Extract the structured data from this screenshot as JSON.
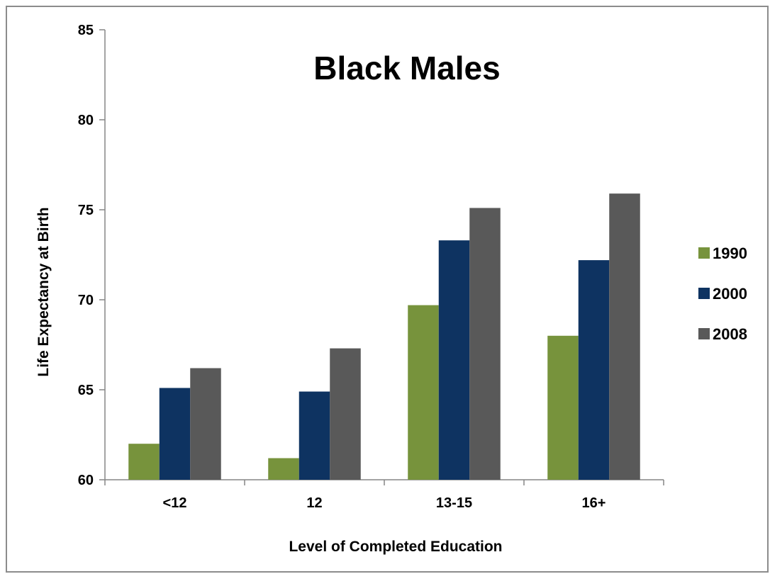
{
  "chart_data": {
    "type": "bar",
    "title": "Black Males",
    "xlabel": "Level of Completed Education",
    "ylabel": "Life Expectancy at Birth",
    "categories": [
      "<12",
      "12",
      "13-15",
      "16+"
    ],
    "series": [
      {
        "name": "1990",
        "color": "#77933c",
        "values": [
          62.0,
          61.2,
          69.7,
          68.0
        ]
      },
      {
        "name": "2000",
        "color": "#0e3361",
        "values": [
          65.1,
          64.9,
          73.3,
          72.2
        ]
      },
      {
        "name": "2008",
        "color": "#595959",
        "values": [
          66.2,
          67.3,
          75.1,
          75.9
        ]
      }
    ],
    "ylim": [
      60,
      85
    ],
    "yticks": [
      60,
      65,
      70,
      75,
      80,
      85
    ],
    "grid": false,
    "legend": "right"
  }
}
